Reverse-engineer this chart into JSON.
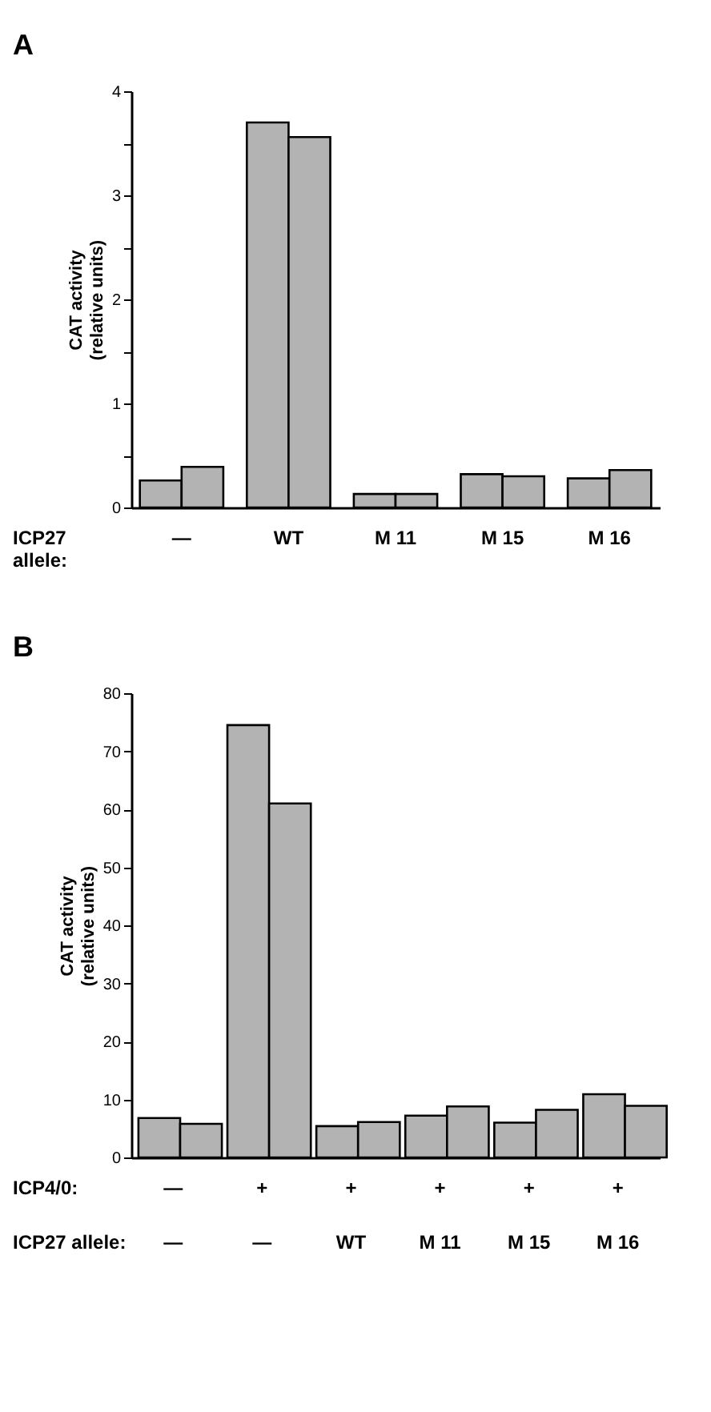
{
  "chart_data": [
    {
      "type": "bar",
      "title": "A",
      "ylabel": "CAT activity\n(relative units)",
      "categories": [
        "—",
        "WT",
        "M 11",
        "M 15",
        "M 16"
      ],
      "series": [
        {
          "color": "#b3b3b3",
          "values": [
            0.26,
            3.7,
            0.13,
            0.32,
            0.28
          ]
        },
        {
          "color": "#b3b3b3",
          "values": [
            0.39,
            3.56,
            0.13,
            0.3,
            0.36
          ]
        }
      ],
      "ylim": [
        0,
        4
      ],
      "yticks": [
        0,
        {
          "value": 0.5,
          "label": null
        },
        1,
        {
          "value": 1.5,
          "label": null
        },
        2,
        {
          "value": 2.5,
          "label": null
        },
        3,
        {
          "value": 3.5,
          "label": null
        },
        4
      ],
      "annotations": [
        "ICP27\nallele:"
      ]
    },
    {
      "type": "bar",
      "title": "B",
      "ylabel": "CAT activity\n(relative units)",
      "categories": [
        "—\n—",
        "+\n—",
        "+\nWT",
        "+\nM 11",
        "+\nM 15",
        "+\nM 16"
      ],
      "series": [
        {
          "color": "#b3b3b3",
          "values": [
            6.8,
            74.5,
            5.4,
            7.2,
            6.0,
            10.9
          ]
        },
        {
          "color": "#b3b3b3",
          "values": [
            5.8,
            61,
            6.1,
            8.8,
            8.2,
            8.9
          ]
        }
      ],
      "ylim": [
        0,
        80
      ],
      "yticks": [
        0,
        10,
        20,
        30,
        40,
        50,
        60,
        70,
        80
      ],
      "annotations": [
        "ICP4/0:",
        "ICP27 allele:"
      ]
    }
  ]
}
